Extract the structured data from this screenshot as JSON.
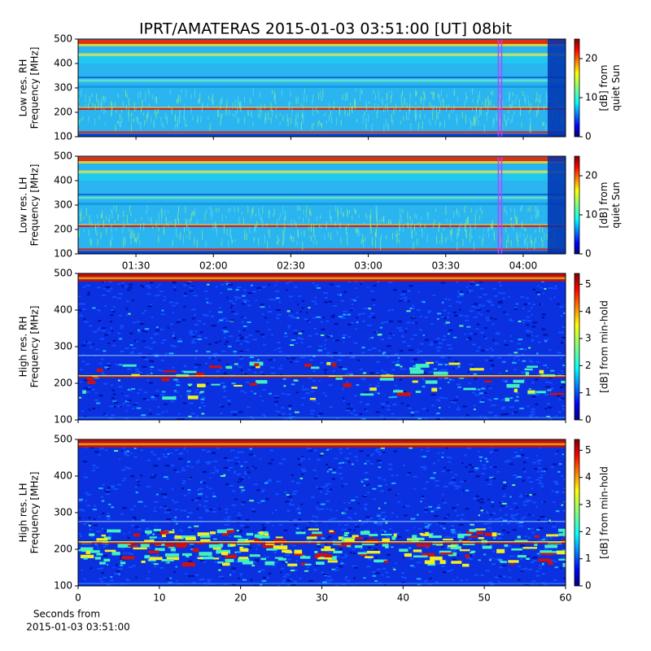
{
  "title": "IPRT/AMATERAS 2015-01-03 03:51:00 [UT]   08bit",
  "chart_data": [
    {
      "type": "heatmap",
      "ylabel": [
        "Low res. RH",
        "Frequency [MHz]"
      ],
      "ylim": [
        100,
        500
      ],
      "yticks": [
        100,
        200,
        300,
        400,
        500
      ],
      "xlim": [
        67.6,
        256.4
      ],
      "xticks": [
        {
          "value": 90,
          "label": "01:30"
        },
        {
          "value": 120,
          "label": "02:00"
        },
        {
          "value": 150,
          "label": "02:30"
        },
        {
          "value": 180,
          "label": "03:00"
        },
        {
          "value": 210,
          "label": "03:30"
        },
        {
          "value": 240,
          "label": "04:00"
        }
      ],
      "show_xtick_labels": false,
      "marker": 231,
      "resolution": "low",
      "colorbar": {
        "label": [
          "[dB] from",
          "quiet Sun"
        ],
        "lim": [
          0,
          25
        ],
        "ticks": [
          0,
          10,
          20
        ]
      }
    },
    {
      "type": "heatmap",
      "ylabel": [
        "Low res. LH",
        "Frequency [MHz]"
      ],
      "ylim": [
        100,
        500
      ],
      "yticks": [
        100,
        200,
        300,
        400,
        500
      ],
      "xlim": [
        67.6,
        256.4
      ],
      "xticks": [
        {
          "value": 90,
          "label": "01:30"
        },
        {
          "value": 120,
          "label": "02:00"
        },
        {
          "value": 150,
          "label": "02:30"
        },
        {
          "value": 180,
          "label": "03:00"
        },
        {
          "value": 210,
          "label": "03:30"
        },
        {
          "value": 240,
          "label": "04:00"
        }
      ],
      "show_xtick_labels": true,
      "marker": 231,
      "resolution": "low",
      "colorbar": {
        "label": [
          "[dB] from",
          "quiet Sun"
        ],
        "lim": [
          0,
          25
        ],
        "ticks": [
          0,
          10,
          20
        ]
      }
    },
    {
      "type": "heatmap",
      "ylabel": [
        "High res. RH",
        "Frequency [MHz]"
      ],
      "ylim": [
        100,
        500
      ],
      "yticks": [
        100,
        200,
        300,
        400,
        500
      ],
      "xlim": [
        0,
        60
      ],
      "xticks": [
        0,
        10,
        20,
        30,
        40,
        50,
        60
      ],
      "show_xtick_labels": false,
      "resolution": "high",
      "colorbar": {
        "label": [
          "[dB] from min-hold"
        ],
        "lim": [
          0,
          5.4
        ],
        "ticks": [
          0,
          1,
          2,
          3,
          4,
          5
        ]
      }
    },
    {
      "type": "heatmap",
      "ylabel": [
        "High res. LH",
        "Frequency [MHz]"
      ],
      "ylim": [
        100,
        500
      ],
      "yticks": [
        100,
        200,
        300,
        400,
        500
      ],
      "xlim": [
        0,
        60
      ],
      "xticks": [
        0,
        10,
        20,
        30,
        40,
        50,
        60
      ],
      "show_xtick_labels": true,
      "xlabel": [
        "Seconds from",
        "2015-01-03 03:51:00"
      ],
      "resolution": "high",
      "colorbar": {
        "label": [
          "[dB] from min-hold"
        ],
        "lim": [
          0,
          5.4
        ],
        "ticks": [
          0,
          1,
          2,
          3,
          4,
          5
        ]
      }
    }
  ]
}
